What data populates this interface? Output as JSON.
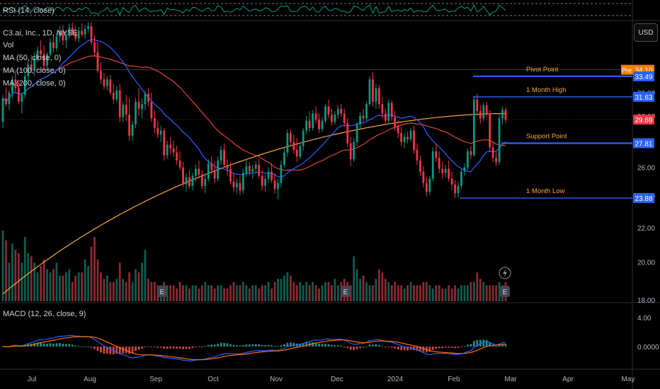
{
  "chart_data": {
    "type": "candlestick",
    "rsi_label": "RSI (14, close)",
    "symbol_label": "C3.ai, Inc., 1D, NYSE",
    "vol_label": "Vol",
    "ma_labels": [
      "MA (50, close, 0)",
      "MA (100, close, 0)",
      "MA (200, close, 0)"
    ],
    "macd_label": "MACD (12, 26, close, 9)",
    "currency_button": "USD",
    "x_ticks": [
      "Jul",
      "Aug",
      "Sep",
      "Oct",
      "Nov",
      "Dec",
      "2024",
      "Feb",
      "Mar",
      "Apr",
      "May"
    ],
    "price_ticks": [
      "32.00",
      "30.00",
      "26.00",
      "24.00",
      "22.00",
      "20.00",
      "18.00"
    ],
    "macd_ticks": [
      "4.00",
      "0.0000"
    ],
    "levels": [
      {
        "name": "Pivot Point",
        "value": 33.49,
        "tag": "33.49"
      },
      {
        "name": "1 Month High",
        "value": 31.63,
        "tag": "31.63"
      },
      {
        "name": "Support Point",
        "value": 27.81,
        "tag": "27.81"
      },
      {
        "name": "1 Month Low",
        "value": 23.88,
        "tag": "23.88"
      }
    ],
    "premarket": {
      "label": "Pre",
      "value": 34.1,
      "tag": "34.10"
    },
    "last_price": {
      "value": 29.69,
      "tag": "29.69"
    },
    "earnings_marker": "E",
    "colors": {
      "up": "#089981",
      "down": "#f23645",
      "ma50": "#2962ff",
      "ma100": "#e8413a",
      "ma200": "#f5a742",
      "level": "#2962ff",
      "premarket": "#f57c00"
    },
    "ohlc": [
      [
        29.5,
        31.8,
        29.0,
        31.5
      ],
      [
        31.5,
        32.5,
        30.8,
        31.0
      ],
      [
        31.0,
        32.2,
        30.5,
        32.0
      ],
      [
        32.0,
        33.5,
        31.5,
        33.2
      ],
      [
        33.2,
        34.0,
        32.0,
        32.4
      ],
      [
        32.4,
        33.0,
        31.0,
        31.2
      ],
      [
        31.2,
        32.0,
        30.2,
        31.8
      ],
      [
        31.8,
        33.8,
        31.5,
        33.5
      ],
      [
        33.5,
        35.0,
        33.0,
        34.6
      ],
      [
        34.6,
        35.5,
        33.8,
        34.0
      ],
      [
        34.0,
        35.8,
        33.5,
        35.2
      ],
      [
        35.2,
        36.4,
        34.8,
        36.0
      ],
      [
        36.0,
        37.0,
        35.2,
        35.6
      ],
      [
        35.6,
        36.5,
        34.0,
        34.5
      ],
      [
        34.5,
        35.8,
        34.2,
        35.6
      ],
      [
        35.6,
        37.2,
        35.4,
        36.8
      ],
      [
        36.8,
        37.5,
        35.8,
        36.2
      ],
      [
        36.2,
        37.8,
        35.9,
        37.4
      ],
      [
        37.4,
        38.5,
        36.8,
        38.0
      ],
      [
        38.0,
        38.6,
        36.5,
        37.0
      ],
      [
        37.0,
        38.0,
        36.2,
        37.6
      ],
      [
        37.6,
        38.8,
        37.2,
        38.3
      ],
      [
        38.3,
        38.9,
        37.5,
        37.8
      ],
      [
        37.8,
        38.5,
        36.9,
        37.2
      ],
      [
        37.2,
        38.4,
        36.8,
        38.0
      ],
      [
        38.0,
        38.8,
        37.4,
        37.6
      ],
      [
        37.6,
        38.6,
        37.2,
        38.2
      ],
      [
        38.2,
        38.9,
        37.8,
        38.5
      ],
      [
        38.5,
        38.9,
        36.5,
        36.8
      ],
      [
        36.8,
        37.5,
        35.4,
        35.8
      ],
      [
        35.8,
        36.8,
        33.8,
        34.0
      ],
      [
        34.0,
        34.8,
        32.8,
        33.2
      ],
      [
        33.2,
        33.8,
        32.3,
        32.6
      ],
      [
        32.6,
        33.5,
        32.2,
        33.2
      ],
      [
        33.2,
        33.6,
        31.8,
        32.0
      ],
      [
        32.0,
        32.8,
        31.0,
        31.4
      ],
      [
        31.4,
        32.6,
        31.2,
        32.2
      ],
      [
        32.2,
        32.8,
        29.5,
        29.9
      ],
      [
        29.9,
        31.2,
        29.5,
        30.9
      ],
      [
        30.9,
        31.8,
        29.6,
        30.1
      ],
      [
        30.1,
        31.5,
        28.0,
        28.4
      ],
      [
        28.4,
        29.6,
        28.0,
        29.3
      ],
      [
        29.3,
        31.5,
        29.0,
        31.2
      ],
      [
        31.2,
        32.4,
        30.0,
        30.6
      ],
      [
        30.6,
        31.5,
        29.8,
        31.0
      ],
      [
        31.0,
        32.2,
        30.5,
        31.9
      ],
      [
        31.9,
        32.4,
        30.8,
        31.2
      ],
      [
        31.2,
        32.0,
        29.5,
        29.8
      ],
      [
        29.8,
        30.5,
        28.6,
        29.0
      ],
      [
        29.0,
        29.6,
        28.2,
        28.5
      ],
      [
        28.5,
        29.2,
        27.9,
        28.8
      ],
      [
        28.8,
        29.0,
        26.5,
        26.9
      ],
      [
        26.9,
        28.0,
        26.6,
        27.7
      ],
      [
        27.7,
        28.3,
        27.0,
        27.4
      ],
      [
        27.4,
        28.0,
        26.8,
        27.1
      ],
      [
        27.1,
        27.6,
        26.2,
        26.5
      ],
      [
        26.5,
        27.2,
        25.8,
        26.0
      ],
      [
        26.0,
        26.4,
        24.6,
        24.8
      ],
      [
        24.8,
        25.6,
        24.3,
        25.3
      ],
      [
        25.3,
        25.8,
        24.5,
        24.7
      ],
      [
        24.7,
        25.6,
        24.4,
        25.4
      ],
      [
        25.4,
        26.2,
        25.0,
        25.9
      ],
      [
        25.9,
        26.5,
        25.2,
        25.5
      ],
      [
        25.5,
        25.8,
        24.5,
        24.7
      ],
      [
        24.7,
        25.5,
        24.2,
        25.2
      ],
      [
        25.2,
        26.6,
        25.0,
        26.3
      ],
      [
        26.3,
        26.8,
        25.5,
        25.8
      ],
      [
        25.8,
        26.4,
        24.9,
        25.2
      ],
      [
        25.2,
        26.8,
        25.0,
        26.5
      ],
      [
        26.5,
        27.6,
        26.2,
        27.3
      ],
      [
        27.3,
        27.8,
        26.0,
        26.2
      ],
      [
        26.2,
        26.6,
        25.4,
        25.9
      ],
      [
        25.9,
        26.4,
        24.8,
        25.0
      ],
      [
        25.0,
        25.6,
        24.3,
        24.6
      ],
      [
        24.6,
        25.2,
        24.2,
        24.9
      ],
      [
        24.9,
        25.4,
        24.1,
        24.4
      ],
      [
        24.4,
        25.9,
        24.2,
        25.6
      ],
      [
        25.6,
        26.5,
        25.3,
        26.1
      ],
      [
        26.1,
        26.4,
        25.4,
        25.7
      ],
      [
        25.7,
        26.2,
        25.2,
        25.9
      ],
      [
        25.9,
        26.5,
        25.6,
        26.2
      ],
      [
        26.2,
        26.6,
        25.2,
        25.4
      ],
      [
        25.4,
        25.8,
        24.4,
        24.7
      ],
      [
        24.7,
        25.5,
        24.3,
        25.2
      ],
      [
        25.2,
        26.0,
        24.9,
        25.7
      ],
      [
        25.7,
        26.3,
        24.9,
        25.1
      ],
      [
        25.1,
        25.6,
        24.2,
        24.5
      ],
      [
        24.5,
        25.2,
        23.8,
        24.9
      ],
      [
        24.9,
        26.5,
        24.6,
        26.2
      ],
      [
        26.2,
        27.4,
        26.0,
        27.1
      ],
      [
        27.1,
        28.9,
        26.8,
        28.6
      ],
      [
        28.6,
        28.9,
        27.6,
        27.9
      ],
      [
        27.9,
        28.5,
        27.0,
        27.3
      ],
      [
        27.3,
        28.2,
        26.4,
        26.8
      ],
      [
        26.8,
        27.8,
        26.6,
        27.6
      ],
      [
        27.6,
        29.0,
        27.2,
        28.8
      ],
      [
        28.8,
        30.0,
        28.5,
        29.6
      ],
      [
        29.6,
        30.4,
        28.7,
        29.0
      ],
      [
        29.0,
        30.5,
        28.8,
        30.2
      ],
      [
        30.2,
        30.8,
        29.4,
        29.7
      ],
      [
        29.7,
        30.2,
        28.6,
        28.9
      ],
      [
        28.9,
        29.9,
        28.7,
        29.6
      ],
      [
        29.6,
        31.0,
        29.4,
        30.8
      ],
      [
        30.8,
        31.4,
        29.8,
        30.1
      ],
      [
        30.1,
        30.6,
        29.2,
        29.5
      ],
      [
        29.5,
        30.4,
        29.3,
        30.1
      ],
      [
        30.1,
        30.9,
        29.8,
        30.6
      ],
      [
        30.6,
        31.0,
        29.9,
        30.2
      ],
      [
        30.2,
        30.6,
        29.1,
        29.4
      ],
      [
        29.4,
        29.8,
        27.5,
        27.8
      ],
      [
        27.8,
        28.3,
        26.1,
        26.6
      ],
      [
        26.6,
        28.2,
        26.4,
        27.9
      ],
      [
        27.9,
        29.5,
        27.6,
        29.3
      ],
      [
        29.3,
        30.3,
        29.0,
        30.0
      ],
      [
        30.0,
        30.6,
        29.5,
        29.8
      ],
      [
        29.8,
        31.2,
        29.6,
        31.0
      ],
      [
        31.0,
        33.5,
        30.8,
        33.2
      ],
      [
        33.2,
        33.9,
        30.8,
        31.2
      ],
      [
        31.2,
        32.8,
        30.6,
        32.4
      ],
      [
        32.4,
        32.7,
        30.6,
        31.0
      ],
      [
        31.0,
        31.6,
        29.8,
        30.2
      ],
      [
        30.2,
        30.6,
        29.3,
        29.6
      ],
      [
        29.6,
        31.4,
        29.4,
        31.1
      ],
      [
        31.1,
        31.3,
        29.6,
        29.9
      ],
      [
        29.9,
        30.4,
        28.8,
        29.1
      ],
      [
        29.1,
        29.6,
        28.2,
        28.6
      ],
      [
        28.6,
        29.1,
        27.6,
        27.9
      ],
      [
        27.9,
        28.6,
        27.4,
        28.3
      ],
      [
        28.3,
        28.7,
        27.8,
        28.1
      ],
      [
        28.1,
        29.0,
        27.9,
        28.8
      ],
      [
        28.8,
        29.2,
        27.0,
        27.3
      ],
      [
        27.3,
        27.8,
        26.2,
        26.5
      ],
      [
        26.5,
        26.9,
        25.4,
        25.7
      ],
      [
        25.7,
        26.1,
        24.6,
        24.9
      ],
      [
        24.9,
        25.3,
        24.0,
        24.3
      ],
      [
        24.3,
        25.4,
        24.1,
        25.2
      ],
      [
        25.2,
        27.5,
        25.0,
        27.2
      ],
      [
        27.2,
        27.8,
        26.4,
        26.7
      ],
      [
        26.7,
        27.2,
        25.6,
        25.9
      ],
      [
        25.9,
        26.4,
        25.2,
        25.6
      ],
      [
        25.6,
        26.2,
        25.3,
        25.9
      ],
      [
        25.9,
        26.5,
        25.0,
        25.2
      ],
      [
        25.2,
        25.7,
        24.4,
        24.8
      ],
      [
        24.8,
        25.1,
        23.9,
        24.2
      ],
      [
        24.2,
        25.0,
        23.9,
        24.7
      ],
      [
        24.7,
        25.9,
        24.5,
        25.7
      ],
      [
        25.7,
        26.3,
        25.4,
        26.0
      ],
      [
        26.0,
        27.4,
        25.8,
        27.2
      ],
      [
        27.2,
        27.6,
        26.6,
        26.9
      ],
      [
        26.9,
        31.7,
        26.8,
        31.4
      ],
      [
        31.4,
        31.9,
        30.0,
        30.4
      ],
      [
        30.4,
        30.9,
        29.4,
        29.8
      ],
      [
        29.8,
        31.1,
        29.6,
        30.9
      ],
      [
        30.9,
        31.2,
        29.9,
        30.2
      ],
      [
        30.2,
        30.5,
        27.2,
        27.5
      ],
      [
        27.5,
        27.9,
        26.4,
        26.7
      ],
      [
        26.7,
        27.2,
        26.1,
        26.4
      ],
      [
        26.4,
        30.1,
        26.2,
        29.8
      ],
      [
        29.8,
        30.8,
        29.3,
        30.5
      ],
      [
        30.5,
        30.7,
        29.4,
        29.69
      ]
    ],
    "volume": [
      2.2,
      1.9,
      1.2,
      1.8,
      1.6,
      1.5,
      1.2,
      2.0,
      1.5,
      1.4,
      1.2,
      0.9,
      1.1,
      1.3,
      1.0,
      0.9,
      1.0,
      1.2,
      0.8,
      0.8,
      0.9,
      1.0,
      0.6,
      0.8,
      0.9,
      0.9,
      1.3,
      1.1,
      1.7,
      2.0,
      1.3,
      0.9,
      0.7,
      0.8,
      0.6,
      0.6,
      0.7,
      1.2,
      0.7,
      0.6,
      0.9,
      0.6,
      1.0,
      0.9,
      1.2,
      1.6,
      0.7,
      0.6,
      0.6,
      0.5,
      0.5,
      0.6,
      0.5,
      0.5,
      0.5,
      0.4,
      0.6,
      0.5,
      0.5,
      0.4,
      0.5,
      0.5,
      0.4,
      0.5,
      0.6,
      0.5,
      0.5,
      0.4,
      0.5,
      0.5,
      0.4,
      0.4,
      0.5,
      0.6,
      0.5,
      0.5,
      0.6,
      0.5,
      0.4,
      0.5,
      0.5,
      0.4,
      0.5,
      0.5,
      0.6,
      0.4,
      0.6,
      0.7,
      0.7,
      0.8,
      0.9,
      0.8,
      0.6,
      0.5,
      0.6,
      0.5,
      0.6,
      0.5,
      0.6,
      0.5,
      0.4,
      0.5,
      0.6,
      0.6,
      0.5,
      0.7,
      0.5,
      0.6,
      0.7,
      0.6,
      0.5,
      1.4,
      1.0,
      0.7,
      0.8,
      0.6,
      0.5,
      0.5,
      0.7,
      1.0,
      0.9,
      0.7,
      0.6,
      0.5,
      0.6,
      0.5,
      0.5,
      0.4,
      0.5,
      0.6,
      0.5,
      0.5,
      0.5,
      0.6,
      0.6,
      0.5,
      0.4,
      0.5,
      0.5,
      0.4,
      0.4,
      0.5,
      0.4,
      0.5,
      0.4,
      0.5,
      0.5,
      0.5,
      0.6,
      0.6,
      0.9,
      0.7,
      0.6,
      0.5,
      0.5,
      0.5,
      0.5,
      0.6,
      0.5,
      0.6
    ],
    "price_range": [
      17.0,
      37.0
    ],
    "rsi_range": [
      0,
      100
    ],
    "macd_range": [
      -2.2,
      5.0
    ]
  }
}
